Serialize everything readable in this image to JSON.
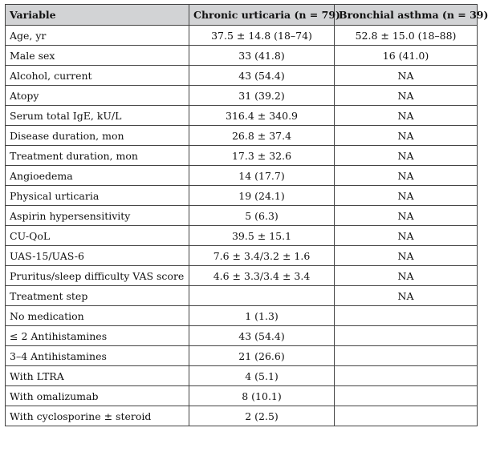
{
  "table": {
    "headers": [
      "Variable",
      "Chronic urticaria (n = 79)",
      "Bronchial asthma (n = 39)"
    ],
    "rows": [
      [
        "Age, yr",
        "37.5 ± 14.8 (18–74)",
        "52.8 ± 15.0 (18–88)"
      ],
      [
        "Male sex",
        "33 (41.8)",
        "16 (41.0)"
      ],
      [
        "Alcohol, current",
        "43 (54.4)",
        "NA"
      ],
      [
        "Atopy",
        "31 (39.2)",
        "NA"
      ],
      [
        "Serum total IgE, kU/L",
        "316.4 ± 340.9",
        "NA"
      ],
      [
        "Disease duration, mon",
        "26.8 ± 37.4",
        "NA"
      ],
      [
        "Treatment duration, mon",
        "17.3 ± 32.6",
        "NA"
      ],
      [
        "Angioedema",
        "14 (17.7)",
        "NA"
      ],
      [
        "Physical urticaria",
        "19 (24.1)",
        "NA"
      ],
      [
        "Aspirin hypersensitivity",
        "5 (6.3)",
        "NA"
      ],
      [
        "CU-QoL",
        "39.5 ± 15.1",
        "NA"
      ],
      [
        "UAS-15/UAS-6",
        "7.6 ± 3.4/3.2 ± 1.6",
        "NA"
      ],
      [
        "Pruritus/sleep difficulty VAS score",
        "4.6 ± 3.3/3.4 ± 3.4",
        "NA"
      ],
      [
        "Treatment step",
        "",
        "NA"
      ],
      [
        "No medication",
        "1 (1.3)",
        ""
      ],
      [
        "≤ 2 Antihistamines",
        "43 (54.4)",
        ""
      ],
      [
        "3–4 Antihistamines",
        "21 (26.6)",
        ""
      ],
      [
        "With LTRA",
        "4 (5.1)",
        ""
      ],
      [
        "With omalizumab",
        "8 (10.1)",
        ""
      ],
      [
        "With cyclosporine ± steroid",
        "2 (2.5)",
        ""
      ]
    ]
  },
  "colors": {
    "header_bg": "#d2d3d5",
    "border": "#444444",
    "text": "#111111"
  }
}
